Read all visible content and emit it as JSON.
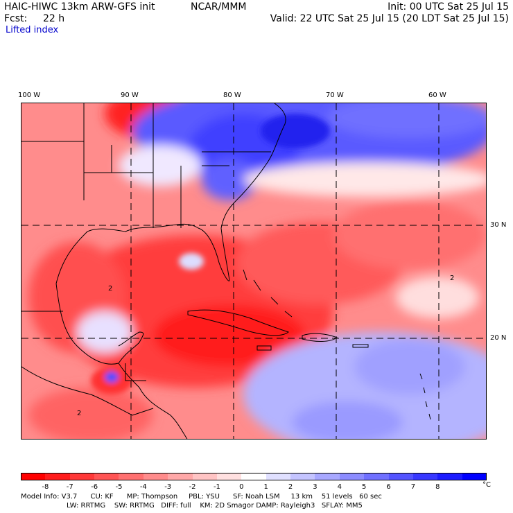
{
  "header": {
    "model": "HAIC-HIWC 13km ARW-GFS init",
    "org": "NCAR/MMM",
    "init": "Init: 00 UTC Sat 25 Jul 15",
    "fcst_label": "Fcst:",
    "fcst_value": "22 h",
    "valid": "Valid: 22 UTC Sat 25 Jul 15 (20 LDT Sat 25 Jul 15)",
    "field": "Lifted index"
  },
  "map": {
    "lon_labels": [
      "100 W",
      "90 W",
      "80 W",
      "70 W",
      "60 W"
    ],
    "lat_labels": [
      "30 N",
      "20 N"
    ],
    "contour_labels": [
      "2",
      "2",
      "2"
    ],
    "region": "Gulf of Mexico, Caribbean and Western Atlantic",
    "colors": {
      "neg": "#ff0000",
      "pos": "#0000ff",
      "neutral": "#ffffff"
    }
  },
  "colorbar": {
    "labels": [
      "-8",
      "-7",
      "-6",
      "-5",
      "-4",
      "-3",
      "-2",
      "-1",
      "0",
      "1",
      "2",
      "3",
      "4",
      "5",
      "6",
      "7",
      "8"
    ],
    "unit": "°C",
    "colors": [
      "#ff0000",
      "#ff1c1c",
      "#ff3838",
      "#ff5454",
      "#ff7070",
      "#ff8c8c",
      "#ffa8a8",
      "#ffc4c4",
      "#ffe0e0",
      "#ffffff",
      "#e0e0ff",
      "#c4c4ff",
      "#a8a8ff",
      "#8c8cff",
      "#7070ff",
      "#5454ff",
      "#3838ff",
      "#1c1cff",
      "#0000ff"
    ]
  },
  "model_info": {
    "line1": "Model Info: V3.7      CU: KF      MP: Thompson     PBL: YSU      SF: Noah LSM     13 km    51 levels   60 sec",
    "line2": "LW: RRTMG    SW: RRTMG   DIFF: full    KM: 2D Smagor DAMP: Rayleigh3   SFLAY: MM5"
  }
}
